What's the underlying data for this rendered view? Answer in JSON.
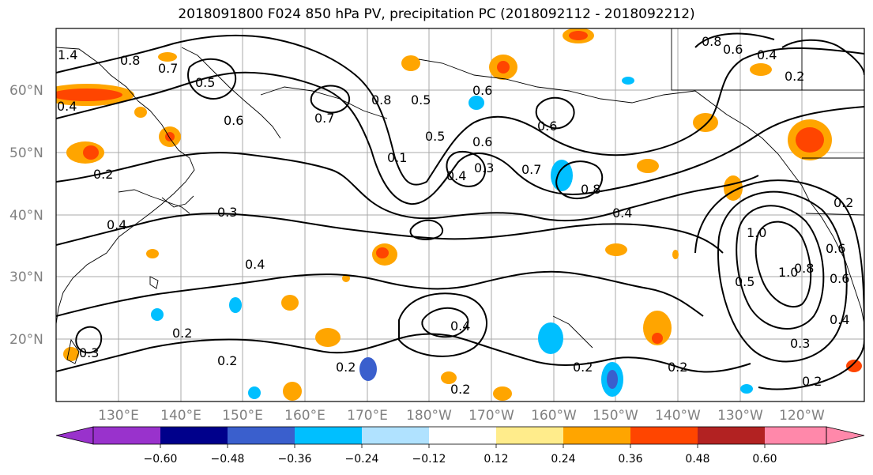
{
  "title": "2018091800 F024 850 hPa PV, precipitation PC (2018092112 - 2018092212)",
  "lat_labels": [
    "60°N",
    "50°N",
    "40°N",
    "30°N",
    "20°N"
  ],
  "lon_labels": [
    "130°E",
    "140°E",
    "150°E",
    "160°E",
    "170°E",
    "180°W",
    "170°W",
    "160°W",
    "150°W",
    "140°W",
    "130°W",
    "120°W"
  ],
  "contour_labels": [
    "0.8",
    "0.7",
    "0.5",
    "0.6",
    "0.7",
    "0.4",
    "0.2",
    "0.8",
    "0.5",
    "0.5",
    "0.1",
    "0.6",
    "0.3",
    "0.4",
    "0.7",
    "0.6",
    "0.6",
    "0.8",
    "0.4",
    "0.3",
    "0.4",
    "0.4",
    "0.2",
    "0.3",
    "0.2",
    "0.4",
    "0.2",
    "0.2",
    "0.2",
    "0.5",
    "1.0",
    "1.0",
    "0.6",
    "0.4",
    "0.3",
    "0.2",
    "0.2",
    "0.8",
    "0.6",
    "0.4",
    "0.2",
    "0.6",
    "0.8",
    "1.4",
    "0.2"
  ],
  "colorbar": {
    "colors": [
      "#9932cc",
      "#00008b",
      "#3a5fcd",
      "#00bfff",
      "#b0e2ff",
      "#ffffff",
      "#ffec8b",
      "#ffa500",
      "#ff4500",
      "#b22222",
      "#ff88aa"
    ],
    "tick_labels": [
      "−0.60",
      "−0.48",
      "−0.36",
      "−0.24",
      "−0.12",
      "0.12",
      "0.24",
      "0.36",
      "0.48",
      "0.60"
    ]
  }
}
